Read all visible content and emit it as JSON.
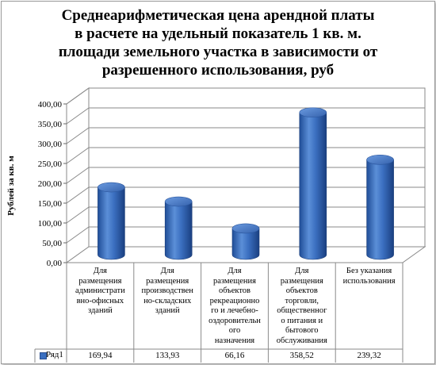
{
  "chart_data": {
    "type": "bar",
    "title_lines": [
      "Среднеарифметическая цена арендной платы",
      "в расчете на удельный показатель 1 кв. м.",
      "площади земельного участка в зависимости от",
      "разрешенного использования, руб"
    ],
    "ylabel": "Рублей за кв. м",
    "ylim": [
      0,
      400
    ],
    "yticks": [
      "0,00",
      "50,00",
      "100,00",
      "150,00",
      "200,00",
      "250,00",
      "300,00",
      "350,00",
      "400,00"
    ],
    "categories": [
      [
        "Для",
        "размещения",
        "администрати",
        "вно-офисных",
        "зданий"
      ],
      [
        "Для",
        "размещения",
        "производствен",
        "но-складских",
        "зданий"
      ],
      [
        "Для",
        "размещения",
        "объектов",
        "рекреационно",
        "го и лечебно-",
        "оздоровительн",
        "ого",
        "назначения"
      ],
      [
        "Для",
        "размещения",
        "объектов",
        "торговли,",
        "общественног",
        "о питания и",
        "бытового",
        "обслуживания"
      ],
      [
        "Без указания",
        "использования"
      ]
    ],
    "series": [
      {
        "name": "Ряд1",
        "values": [
          169.94,
          133.93,
          66.16,
          358.52,
          239.32
        ],
        "labels": [
          "169,94",
          "133,93",
          "66,16",
          "358,52",
          "239,32"
        ],
        "color": "#3a6fc0"
      }
    ],
    "grid": true,
    "legend": "data-table-left",
    "chart_style": "3d-cylinder"
  }
}
